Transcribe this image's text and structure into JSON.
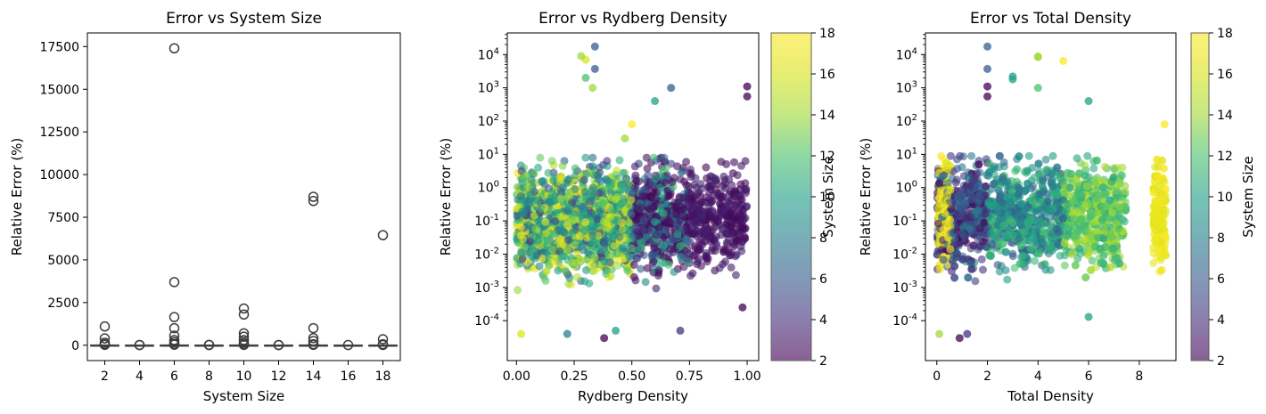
{
  "chart_data": [
    {
      "type": "box",
      "title": "Error vs System Size",
      "xlabel": "System Size",
      "ylabel": "Relative Error (%)",
      "ylim": [
        -900,
        18300
      ],
      "yticks": [
        0,
        2500,
        5000,
        7500,
        10000,
        12500,
        15000,
        17500
      ],
      "categories": [
        "2",
        "4",
        "6",
        "8",
        "10",
        "12",
        "14",
        "16",
        "18"
      ],
      "boxes": [
        {
          "x": "2",
          "median": 0,
          "q1": 0,
          "q3": 5,
          "outliers": [
            1100,
            400,
            150,
            60,
            20
          ]
        },
        {
          "x": "4",
          "median": 0,
          "q1": 0,
          "q3": 3,
          "outliers": [
            15,
            8
          ]
        },
        {
          "x": "6",
          "median": 0,
          "q1": 0,
          "q3": 6,
          "outliers": [
            17400,
            3700,
            1650,
            1000,
            560,
            300,
            180,
            80,
            30
          ]
        },
        {
          "x": "8",
          "median": 0,
          "q1": 0,
          "q3": 3,
          "outliers": [
            20,
            12
          ]
        },
        {
          "x": "10",
          "median": 0,
          "q1": 0,
          "q3": 5,
          "outliers": [
            2150,
            1800,
            700,
            500,
            300,
            150,
            60,
            20
          ]
        },
        {
          "x": "12",
          "median": 0,
          "q1": 0,
          "q3": 3,
          "outliers": [
            15,
            8
          ]
        },
        {
          "x": "14",
          "median": 0,
          "q1": 0,
          "q3": 5,
          "outliers": [
            8700,
            8450,
            1000,
            420,
            250,
            60,
            20
          ]
        },
        {
          "x": "16",
          "median": 0,
          "q1": 0,
          "q3": 2,
          "outliers": [
            10
          ]
        },
        {
          "x": "18",
          "median": 0,
          "q1": 0,
          "q3": 4,
          "outliers": [
            6450,
            350,
            60,
            15
          ]
        }
      ]
    },
    {
      "type": "scatter",
      "title": "Error vs Rydberg Density",
      "xlabel": "Rydberg Density",
      "ylabel": "Relative Error (%)",
      "xlim": [
        -0.04,
        1.05
      ],
      "xticks": [
        "0.00",
        "0.25",
        "0.50",
        "0.75",
        "1.00"
      ],
      "ylim_log10": [
        -5.2,
        4.65
      ],
      "ytick_exponents": [
        -4,
        -3,
        -2,
        -1,
        0,
        1,
        2,
        3,
        4
      ],
      "y_scale": "log",
      "color_by": "System Size",
      "colorbar": {
        "label": "System Size",
        "min": 2,
        "max": 18,
        "ticks": [
          2,
          4,
          6,
          8,
          10,
          12,
          14,
          16,
          18
        ]
      },
      "highlight_points": [
        {
          "x": 0.34,
          "y": 17400,
          "c": 6
        },
        {
          "x": 0.34,
          "y": 3700,
          "c": 6
        },
        {
          "x": 0.3,
          "y": 7000,
          "c": 16
        },
        {
          "x": 0.28,
          "y": 9000,
          "c": 14
        },
        {
          "x": 0.3,
          "y": 2000,
          "c": 12
        },
        {
          "x": 0.33,
          "y": 1000,
          "c": 14
        },
        {
          "x": 0.67,
          "y": 1000,
          "c": 6
        },
        {
          "x": 0.6,
          "y": 400,
          "c": 10
        },
        {
          "x": 1.0,
          "y": 1100,
          "c": 2
        },
        {
          "x": 1.0,
          "y": 550,
          "c": 2
        },
        {
          "x": 0.98,
          "y": 0.00025,
          "c": 2
        },
        {
          "x": 0.71,
          "y": 5e-05,
          "c": 4
        },
        {
          "x": 0.38,
          "y": 3e-05,
          "c": 2
        },
        {
          "x": 0.43,
          "y": 5e-05,
          "c": 10
        },
        {
          "x": 0.22,
          "y": 4e-05,
          "c": 8
        },
        {
          "x": 0.02,
          "y": 4e-05,
          "c": 16
        },
        {
          "x": 0.5,
          "y": 80,
          "c": 18
        },
        {
          "x": 0.47,
          "y": 30,
          "c": 14
        }
      ]
    },
    {
      "type": "scatter",
      "title": "Error vs Total Density",
      "xlabel": "Total Density",
      "ylabel": "Relative Error (%)",
      "xlim": [
        -0.45,
        9.45
      ],
      "xticks": [
        "0",
        "2",
        "4",
        "6",
        "8"
      ],
      "ylim_log10": [
        -5.2,
        4.65
      ],
      "ytick_exponents": [
        -4,
        -3,
        -2,
        -1,
        0,
        1,
        2,
        3,
        4
      ],
      "y_scale": "log",
      "color_by": "System Size",
      "colorbar": {
        "label": "System Size",
        "min": 2,
        "max": 18,
        "ticks": [
          2,
          4,
          6,
          8,
          10,
          12,
          14,
          16,
          18
        ]
      },
      "highlight_points": [
        {
          "x": 2.0,
          "y": 17400,
          "c": 6
        },
        {
          "x": 2.0,
          "y": 3700,
          "c": 6
        },
        {
          "x": 2.0,
          "y": 1100,
          "c": 2
        },
        {
          "x": 2.0,
          "y": 550,
          "c": 2
        },
        {
          "x": 3.0,
          "y": 2200,
          "c": 10
        },
        {
          "x": 3.0,
          "y": 1800,
          "c": 10
        },
        {
          "x": 4.0,
          "y": 8700,
          "c": 14
        },
        {
          "x": 4.0,
          "y": 8450,
          "c": 14
        },
        {
          "x": 4.0,
          "y": 1000,
          "c": 12
        },
        {
          "x": 5.0,
          "y": 6450,
          "c": 18
        },
        {
          "x": 6.0,
          "y": 400,
          "c": 10
        },
        {
          "x": 9.0,
          "y": 80,
          "c": 18
        },
        {
          "x": 6.0,
          "y": 0.00013,
          "c": 10
        },
        {
          "x": 0.9,
          "y": 3e-05,
          "c": 2
        },
        {
          "x": 1.2,
          "y": 4e-05,
          "c": 4
        },
        {
          "x": 0.1,
          "y": 4e-05,
          "c": 14
        }
      ]
    }
  ]
}
